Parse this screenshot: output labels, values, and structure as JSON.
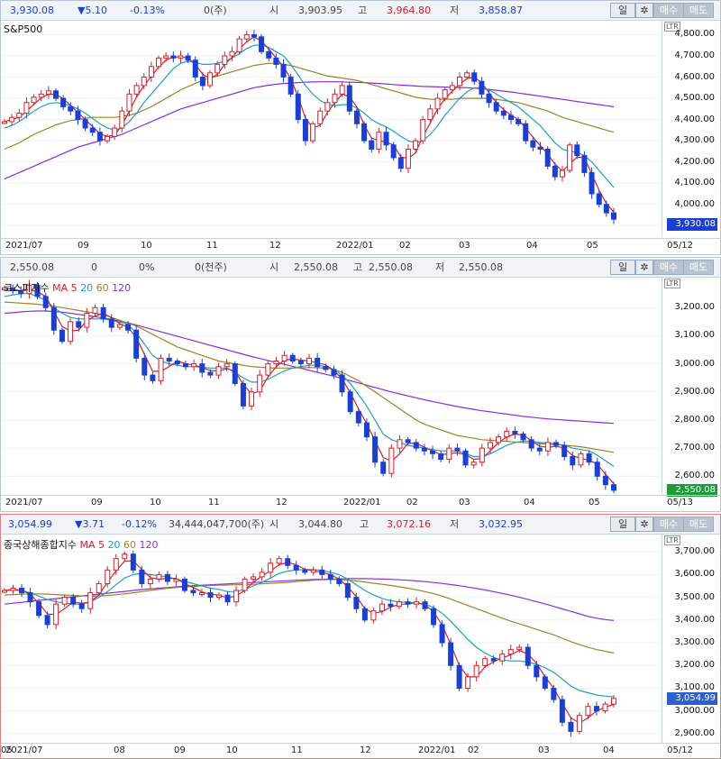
{
  "colors": {
    "up": "#d8202a",
    "down": "#1a3fd8",
    "ma5": "#d8202a",
    "ma20": "#1aa0c8",
    "ma60": "#a08020",
    "ma120": "#8a2be2"
  },
  "panel_buttons": {
    "period": "일",
    "settings_icon": "gear-icon",
    "buy": "매수",
    "sell": "매도"
  },
  "axis_badge": "LTR",
  "panels": [
    {
      "header": {
        "price": "3,930.08",
        "change": "▼5.10",
        "change_pct": "-0.13%",
        "volume": "0(주)",
        "open_label": "시",
        "open": "3,903.95",
        "high_label": "고",
        "high": "3,964.80",
        "low_label": "저",
        "low": "3,858.87"
      },
      "title": "S&P500",
      "ma_labels": {
        "prefix": "",
        "ma5": "",
        "ma20": "",
        "ma60": "",
        "ma120": ""
      },
      "last_value": "3,930.08",
      "x_labels": [
        "2021/07",
        "09",
        "10",
        "11",
        "12",
        "2022/01",
        "02",
        "03",
        "04",
        "05"
      ],
      "x_end": "05/12"
    },
    {
      "header": {
        "price": "2,550.08",
        "change": "0",
        "change_pct": "0%",
        "volume": "0(천주)",
        "open_label": "시",
        "open": "2,550.08",
        "high_label": "고",
        "high": "2,550.08",
        "low_label": "저",
        "low": "2,550.08"
      },
      "title": "코스피지수",
      "ma_labels": {
        "prefix": "MA",
        "ma5": "5",
        "ma20": "20",
        "ma60": "60",
        "ma120": "120"
      },
      "last_value": "2,550.08",
      "x_labels": [
        "2021/07",
        "09",
        "10",
        "11",
        "12",
        "2022/01",
        "02",
        "03",
        "04",
        "05"
      ],
      "x_end": "05/13"
    },
    {
      "header": {
        "price": "3,054.99",
        "change": "▼3.71",
        "change_pct": "-0.12%",
        "volume": "34,444,047,700(주)",
        "open_label": "시",
        "open": "3,044.80",
        "high_label": "고",
        "high": "3,072.16",
        "low_label": "저",
        "low": "3,032.95"
      },
      "title": "종국상해종합지수",
      "ma_labels": {
        "prefix": "MA",
        "ma5": "5",
        "ma20": "20",
        "ma60": "60",
        "ma120": "120"
      },
      "last_value": "3,054.99",
      "x_labels": [
        "2021/07",
        "08",
        "09",
        "10",
        "11",
        "12",
        "2022/01",
        "02",
        "03",
        "04",
        "05"
      ],
      "x_end": "05/12"
    }
  ],
  "chart_data": [
    {
      "type": "candlestick",
      "title": "S&P500",
      "x_months": [
        "2021/07",
        "09",
        "10",
        "11",
        "12",
        "2022/01",
        "02",
        "03",
        "04",
        "05"
      ],
      "ylim": [
        3850,
        4870
      ],
      "y_ticks": [
        "4,800.00",
        "4,700.00",
        "4,600.00",
        "4,500.00",
        "4,400.00",
        "4,300.00",
        "4,200.00",
        "4,100.00",
        "4,000.00",
        "3,900.00"
      ],
      "last": 3930.08,
      "close_path": [
        4390,
        4410,
        4430,
        4480,
        4505,
        4520,
        4535,
        4500,
        4460,
        4440,
        4400,
        4360,
        4340,
        4300,
        4320,
        4360,
        4440,
        4520,
        4560,
        4600,
        4650,
        4690,
        4700,
        4690,
        4700,
        4680,
        4600,
        4560,
        4620,
        4660,
        4700,
        4720,
        4780,
        4800,
        4790,
        4720,
        4690,
        4660,
        4600,
        4520,
        4400,
        4300,
        4380,
        4440,
        4480,
        4520,
        4560,
        4440,
        4380,
        4300,
        4260,
        4340,
        4280,
        4220,
        4170,
        4260,
        4300,
        4400,
        4450,
        4500,
        4540,
        4560,
        4600,
        4620,
        4580,
        4520,
        4480,
        4440,
        4420,
        4400,
        4380,
        4300,
        4270,
        4260,
        4180,
        4130,
        4160,
        4280,
        4230,
        4150,
        4050,
        4000,
        3960,
        3930
      ],
      "ma20": [
        4360,
        4372,
        4390,
        4415,
        4440,
        4460,
        4475,
        4480,
        4475,
        4465,
        4450,
        4430,
        4405,
        4380,
        4360,
        4350,
        4360,
        4390,
        4430,
        4480,
        4520,
        4560,
        4600,
        4640,
        4665,
        4675,
        4670,
        4660,
        4660,
        4665,
        4675,
        4690,
        4710,
        4735,
        4750,
        4750,
        4740,
        4720,
        4700,
        4660,
        4610,
        4560,
        4520,
        4490,
        4470,
        4465,
        4470,
        4470,
        4455,
        4430,
        4400,
        4380,
        4365,
        4345,
        4320,
        4300,
        4290,
        4300,
        4330,
        4370,
        4420,
        4460,
        4500,
        4530,
        4550,
        4550,
        4540,
        4520,
        4500,
        4480,
        4460,
        4430,
        4400,
        4370,
        4330,
        4290,
        4260,
        4250,
        4245,
        4230,
        4200,
        4160,
        4120,
        4080
      ],
      "ma60": [
        4260,
        4275,
        4290,
        4310,
        4330,
        4345,
        4360,
        4375,
        4385,
        4395,
        4400,
        4405,
        4410,
        4410,
        4410,
        4410,
        4415,
        4420,
        4430,
        4445,
        4460,
        4480,
        4500,
        4520,
        4540,
        4555,
        4570,
        4585,
        4595,
        4605,
        4615,
        4625,
        4635,
        4645,
        4655,
        4660,
        4665,
        4665,
        4660,
        4655,
        4645,
        4635,
        4625,
        4615,
        4605,
        4600,
        4595,
        4590,
        4585,
        4575,
        4565,
        4555,
        4545,
        4535,
        4525,
        4515,
        4505,
        4500,
        4495,
        4495,
        4495,
        4495,
        4500,
        4500,
        4500,
        4500,
        4500,
        4495,
        4490,
        4485,
        4480,
        4470,
        4460,
        4450,
        4440,
        4425,
        4410,
        4400,
        4390,
        4380,
        4370,
        4360,
        4350,
        4340
      ],
      "ma120": [
        4120,
        4135,
        4150,
        4165,
        4180,
        4195,
        4210,
        4225,
        4240,
        4255,
        4270,
        4280,
        4290,
        4300,
        4310,
        4320,
        4330,
        4345,
        4360,
        4375,
        4390,
        4405,
        4420,
        4435,
        4450,
        4460,
        4470,
        4480,
        4490,
        4500,
        4510,
        4520,
        4530,
        4540,
        4550,
        4556,
        4562,
        4566,
        4570,
        4572,
        4574,
        4576,
        4577,
        4578,
        4578,
        4578,
        4577,
        4576,
        4575,
        4574,
        4572,
        4570,
        4568,
        4565,
        4562,
        4560,
        4558,
        4556,
        4555,
        4554,
        4553,
        4552,
        4551,
        4550,
        4548,
        4545,
        4542,
        4538,
        4534,
        4530,
        4525,
        4520,
        4515,
        4510,
        4505,
        4500,
        4495,
        4490,
        4485,
        4480,
        4475,
        4470,
        4465,
        4460
      ]
    },
    {
      "type": "candlestick",
      "title": "코스피지수",
      "x_months": [
        "2021/07",
        "09",
        "10",
        "11",
        "12",
        "2022/01",
        "02",
        "03",
        "04",
        "05"
      ],
      "ylim": [
        2540,
        3310
      ],
      "y_ticks": [
        "3,200.00",
        "3,100.00",
        "3,000.00",
        "2,900.00",
        "2,800.00",
        "2,700.00",
        "2,600.00"
      ],
      "last": 2550.08,
      "close_path": [
        3270,
        3260,
        3250,
        3280,
        3240,
        3200,
        3120,
        3080,
        3150,
        3130,
        3180,
        3200,
        3160,
        3130,
        3140,
        3120,
        3020,
        2960,
        2940,
        3020,
        3010,
        3000,
        2990,
        3000,
        2970,
        2960,
        2990,
        3000,
        2930,
        2850,
        2900,
        2960,
        3000,
        3010,
        3030,
        3010,
        3000,
        3020,
        2990,
        2980,
        2960,
        2900,
        2830,
        2790,
        2740,
        2650,
        2610,
        2700,
        2730,
        2720,
        2700,
        2690,
        2680,
        2660,
        2700,
        2690,
        2640,
        2650,
        2700,
        2720,
        2740,
        2760,
        2750,
        2730,
        2700,
        2690,
        2720,
        2710,
        2670,
        2640,
        2680,
        2650,
        2600,
        2570,
        2550
      ],
      "ma20": [
        3240,
        3245,
        3250,
        3250,
        3240,
        3225,
        3200,
        3180,
        3165,
        3160,
        3160,
        3160,
        3160,
        3155,
        3150,
        3140,
        3110,
        3070,
        3030,
        3010,
        3000,
        2995,
        2990,
        2990,
        2988,
        2985,
        2985,
        2985,
        2970,
        2950,
        2935,
        2935,
        2945,
        2960,
        2975,
        2985,
        2990,
        2995,
        2995,
        2990,
        2980,
        2960,
        2930,
        2890,
        2850,
        2800,
        2750,
        2730,
        2720,
        2710,
        2705,
        2700,
        2695,
        2690,
        2690,
        2690,
        2680,
        2670,
        2670,
        2680,
        2695,
        2710,
        2720,
        2725,
        2725,
        2720,
        2718,
        2715,
        2710,
        2700,
        2695,
        2690,
        2675,
        2655,
        2635
      ],
      "ma60": [
        3220,
        3218,
        3216,
        3214,
        3212,
        3208,
        3205,
        3200,
        3195,
        3190,
        3185,
        3180,
        3175,
        3165,
        3155,
        3145,
        3135,
        3120,
        3105,
        3090,
        3075,
        3060,
        3050,
        3040,
        3030,
        3020,
        3010,
        3005,
        3000,
        2995,
        2990,
        2988,
        2986,
        2985,
        2985,
        2985,
        2986,
        2987,
        2986,
        2985,
        2980,
        2970,
        2955,
        2940,
        2920,
        2900,
        2880,
        2860,
        2840,
        2820,
        2800,
        2785,
        2775,
        2765,
        2755,
        2745,
        2740,
        2735,
        2730,
        2728,
        2726,
        2724,
        2722,
        2720,
        2718,
        2716,
        2714,
        2712,
        2710,
        2708,
        2705,
        2700,
        2695,
        2690,
        2685
      ],
      "ma120": [
        3180,
        3182,
        3185,
        3187,
        3188,
        3188,
        3186,
        3184,
        3180,
        3176,
        3172,
        3168,
        3163,
        3158,
        3152,
        3146,
        3138,
        3130,
        3122,
        3114,
        3106,
        3098,
        3090,
        3082,
        3074,
        3066,
        3058,
        3050,
        3042,
        3034,
        3026,
        3019,
        3012,
        3005,
        2998,
        2991,
        2984,
        2977,
        2970,
        2963,
        2956,
        2948,
        2940,
        2932,
        2924,
        2916,
        2908,
        2900,
        2893,
        2886,
        2879,
        2872,
        2866,
        2860,
        2854,
        2848,
        2843,
        2838,
        2833,
        2829,
        2825,
        2821,
        2817,
        2813,
        2810,
        2807,
        2804,
        2802,
        2800,
        2798,
        2796,
        2794,
        2792,
        2790,
        2788
      ]
    },
    {
      "type": "candlestick",
      "title": "종국상해종합지수",
      "x_months": [
        "2021/07",
        "08",
        "09",
        "10",
        "11",
        "12",
        "2022/01",
        "02",
        "03",
        "04",
        "05"
      ],
      "ylim": [
        2860,
        3780
      ],
      "y_ticks": [
        "3,700.00",
        "3,600.00",
        "3,500.00",
        "3,400.00",
        "3,300.00",
        "3,200.00",
        "3,100.00",
        "3,000.00",
        "2,900.00"
      ],
      "last": 3054.99,
      "close_path": [
        3530,
        3540,
        3520,
        3480,
        3420,
        3380,
        3470,
        3500,
        3470,
        3450,
        3520,
        3560,
        3620,
        3670,
        3690,
        3620,
        3560,
        3580,
        3600,
        3570,
        3580,
        3530,
        3520,
        3520,
        3500,
        3510,
        3480,
        3530,
        3580,
        3590,
        3610,
        3650,
        3670,
        3640,
        3620,
        3610,
        3620,
        3600,
        3580,
        3560,
        3500,
        3450,
        3400,
        3440,
        3470,
        3460,
        3480,
        3470,
        3480,
        3450,
        3380,
        3300,
        3200,
        3100,
        3150,
        3200,
        3230,
        3220,
        3250,
        3270,
        3280,
        3200,
        3150,
        3100,
        3050,
        2950,
        2910,
        2980,
        3020,
        3000,
        3030,
        3055
      ],
      "ma20": [
        3530,
        3532,
        3530,
        3520,
        3505,
        3490,
        3480,
        3475,
        3470,
        3470,
        3480,
        3500,
        3525,
        3555,
        3585,
        3600,
        3605,
        3600,
        3595,
        3590,
        3580,
        3570,
        3560,
        3550,
        3540,
        3535,
        3525,
        3525,
        3535,
        3550,
        3565,
        3585,
        3605,
        3615,
        3620,
        3622,
        3622,
        3618,
        3610,
        3600,
        3580,
        3555,
        3530,
        3510,
        3495,
        3485,
        3480,
        3478,
        3475,
        3470,
        3455,
        3430,
        3395,
        3355,
        3315,
        3280,
        3255,
        3235,
        3225,
        3220,
        3220,
        3215,
        3205,
        3190,
        3170,
        3140,
        3110,
        3090,
        3080,
        3070,
        3065,
        3062
      ],
      "ma60": [
        3510,
        3512,
        3514,
        3515,
        3515,
        3514,
        3512,
        3510,
        3508,
        3506,
        3505,
        3506,
        3508,
        3511,
        3515,
        3520,
        3525,
        3530,
        3535,
        3540,
        3543,
        3546,
        3548,
        3550,
        3552,
        3553,
        3554,
        3555,
        3556,
        3557,
        3559,
        3561,
        3563,
        3566,
        3569,
        3572,
        3575,
        3577,
        3578,
        3578,
        3576,
        3572,
        3567,
        3562,
        3557,
        3552,
        3546,
        3540,
        3533,
        3525,
        3516,
        3505,
        3492,
        3478,
        3464,
        3450,
        3436,
        3422,
        3408,
        3395,
        3383,
        3371,
        3359,
        3347,
        3335,
        3320,
        3305,
        3292,
        3280,
        3270,
        3262,
        3255
      ],
      "ma120": [
        3470,
        3474,
        3478,
        3482,
        3486,
        3490,
        3494,
        3498,
        3502,
        3506,
        3510,
        3514,
        3518,
        3522,
        3526,
        3530,
        3534,
        3537,
        3540,
        3543,
        3546,
        3549,
        3551,
        3553,
        3555,
        3557,
        3559,
        3561,
        3563,
        3565,
        3567,
        3569,
        3571,
        3573,
        3575,
        3577,
        3578,
        3579,
        3580,
        3581,
        3582,
        3582,
        3582,
        3581,
        3580,
        3579,
        3577,
        3575,
        3572,
        3569,
        3565,
        3561,
        3556,
        3551,
        3545,
        3539,
        3532,
        3525,
        3517,
        3509,
        3500,
        3491,
        3481,
        3471,
        3460,
        3449,
        3438,
        3427,
        3416,
        3408,
        3402,
        3398
      ]
    }
  ]
}
